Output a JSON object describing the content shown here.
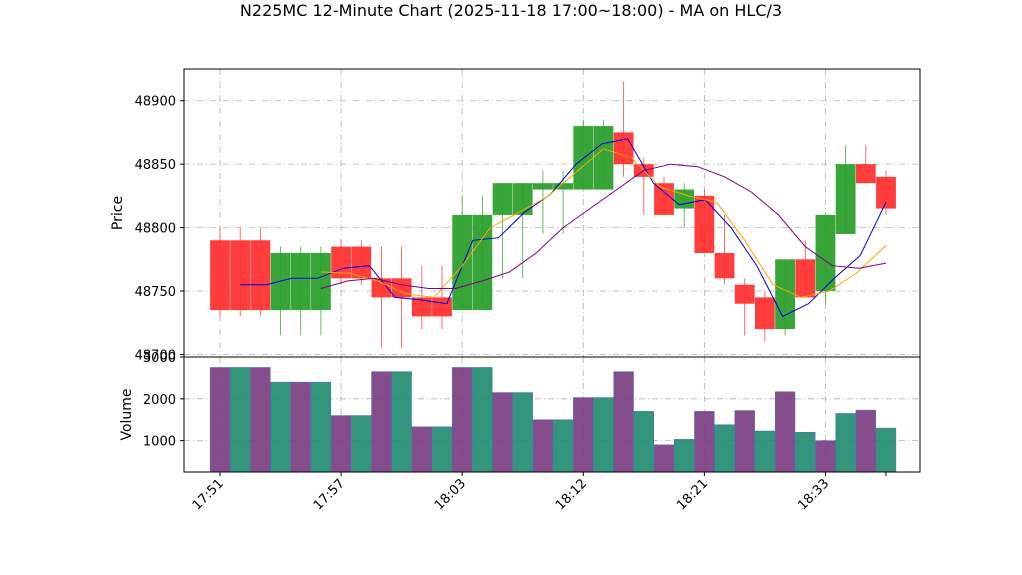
{
  "chart_data": {
    "type": "candlestick",
    "title": "N225MC 12-Minute Chart (2025-11-18 17:00~18:00) - MA on HLC/3",
    "price_panel": {
      "ylabel": "Price",
      "ylim": [
        48698,
        48925
      ],
      "yticks": [
        48700,
        48750,
        48800,
        48850,
        48900
      ],
      "grid": true
    },
    "volume_panel": {
      "ylabel": "Volume",
      "ylim": [
        250,
        3000
      ],
      "yticks": [
        1000,
        2000,
        3000
      ],
      "grid": true
    },
    "x_tick_labels": [
      "17:51",
      "17:57",
      "18:03",
      "18:12",
      "18:21",
      "18:33"
    ],
    "x_tick_index": [
      0,
      6,
      12,
      18,
      24,
      30
    ],
    "up_color": "#2ca02c",
    "down_color": "#ff3333",
    "volume_colors": [
      "#7a3a80",
      "#1f8a70"
    ],
    "candles": [
      {
        "o": 48790,
        "h": 48800,
        "l": 48730,
        "c": 48735,
        "v": 2750
      },
      {
        "o": 48790,
        "h": 48800,
        "l": 48730,
        "c": 48735,
        "v": 2750
      },
      {
        "o": 48790,
        "h": 48800,
        "l": 48730,
        "c": 48735,
        "v": 2750
      },
      {
        "o": 48735,
        "h": 48785,
        "l": 48715,
        "c": 48780,
        "v": 2400
      },
      {
        "o": 48735,
        "h": 48785,
        "l": 48715,
        "c": 48780,
        "v": 2400
      },
      {
        "o": 48735,
        "h": 48785,
        "l": 48715,
        "c": 48780,
        "v": 2400
      },
      {
        "o": 48785,
        "h": 48790,
        "l": 48755,
        "c": 48760,
        "v": 1600
      },
      {
        "o": 48785,
        "h": 48790,
        "l": 48755,
        "c": 48760,
        "v": 1600
      },
      {
        "o": 48760,
        "h": 48785,
        "l": 48705,
        "c": 48745,
        "v": 2650
      },
      {
        "o": 48760,
        "h": 48785,
        "l": 48705,
        "c": 48745,
        "v": 2650
      },
      {
        "o": 48745,
        "h": 48770,
        "l": 48720,
        "c": 48730,
        "v": 1330
      },
      {
        "o": 48745,
        "h": 48770,
        "l": 48720,
        "c": 48730,
        "v": 1330
      },
      {
        "o": 48735,
        "h": 48825,
        "l": 48735,
        "c": 48810,
        "v": 2750
      },
      {
        "o": 48735,
        "h": 48825,
        "l": 48735,
        "c": 48810,
        "v": 2750
      },
      {
        "o": 48810,
        "h": 48835,
        "l": 48760,
        "c": 48835,
        "v": 2150
      },
      {
        "o": 48810,
        "h": 48835,
        "l": 48760,
        "c": 48835,
        "v": 2150
      },
      {
        "o": 48830,
        "h": 48845,
        "l": 48795,
        "c": 48835,
        "v": 1500
      },
      {
        "o": 48830,
        "h": 48845,
        "l": 48795,
        "c": 48835,
        "v": 1500
      },
      {
        "o": 48830,
        "h": 48885,
        "l": 48830,
        "c": 48880,
        "v": 2030
      },
      {
        "o": 48830,
        "h": 48885,
        "l": 48830,
        "c": 48880,
        "v": 2030
      },
      {
        "o": 48875,
        "h": 48915,
        "l": 48840,
        "c": 48850,
        "v": 2650
      },
      {
        "o": 48850,
        "h": 48855,
        "l": 48810,
        "c": 48840,
        "v": 1700
      },
      {
        "o": 48835,
        "h": 48840,
        "l": 48810,
        "c": 48810,
        "v": 900
      },
      {
        "o": 48815,
        "h": 48835,
        "l": 48800,
        "c": 48830,
        "v": 1030
      },
      {
        "o": 48825,
        "h": 48830,
        "l": 48780,
        "c": 48780,
        "v": 1700
      },
      {
        "o": 48780,
        "h": 48810,
        "l": 48755,
        "c": 48760,
        "v": 1380
      },
      {
        "o": 48755,
        "h": 48760,
        "l": 48715,
        "c": 48740,
        "v": 1720
      },
      {
        "o": 48745,
        "h": 48750,
        "l": 48710,
        "c": 48720,
        "v": 1230
      },
      {
        "o": 48720,
        "h": 48775,
        "l": 48715,
        "c": 48775,
        "v": 2170
      },
      {
        "o": 48775,
        "h": 48790,
        "l": 48745,
        "c": 48745,
        "v": 1200
      },
      {
        "o": 48750,
        "h": 48810,
        "l": 48740,
        "c": 48810,
        "v": 1000
      },
      {
        "o": 48795,
        "h": 48865,
        "l": 48795,
        "c": 48850,
        "v": 1650
      },
      {
        "o": 48850,
        "h": 48865,
        "l": 48835,
        "c": 48835,
        "v": 1730
      },
      {
        "o": 48840,
        "h": 48845,
        "l": 48810,
        "c": 48815,
        "v": 1300
      }
    ],
    "ma_series": [
      {
        "color": "#0000dd",
        "values": [
          48755,
          48755,
          48760,
          48760,
          48768,
          48770,
          48745,
          48743,
          48740,
          48790,
          48792,
          48812,
          48826,
          48850,
          48866,
          48870,
          48835,
          48818,
          48822,
          48800,
          48770,
          48730,
          48740,
          48760,
          48778,
          48820
        ]
      },
      {
        "color": "#ffa500",
        "values": [
          48765,
          48764,
          48758,
          48748,
          48745,
          48770,
          48800,
          48812,
          48824,
          48843,
          48862,
          48855,
          48832,
          48825,
          48820,
          48790,
          48755,
          48745,
          48750,
          48765,
          48786
        ]
      },
      {
        "color": "#800080",
        "values": [
          48752,
          48758,
          48760,
          48755,
          48752,
          48752,
          48758,
          48765,
          48780,
          48800,
          48815,
          48830,
          48845,
          48850,
          48848,
          48840,
          48828,
          48810,
          48785,
          48770,
          48768,
          48772
        ]
      }
    ]
  }
}
